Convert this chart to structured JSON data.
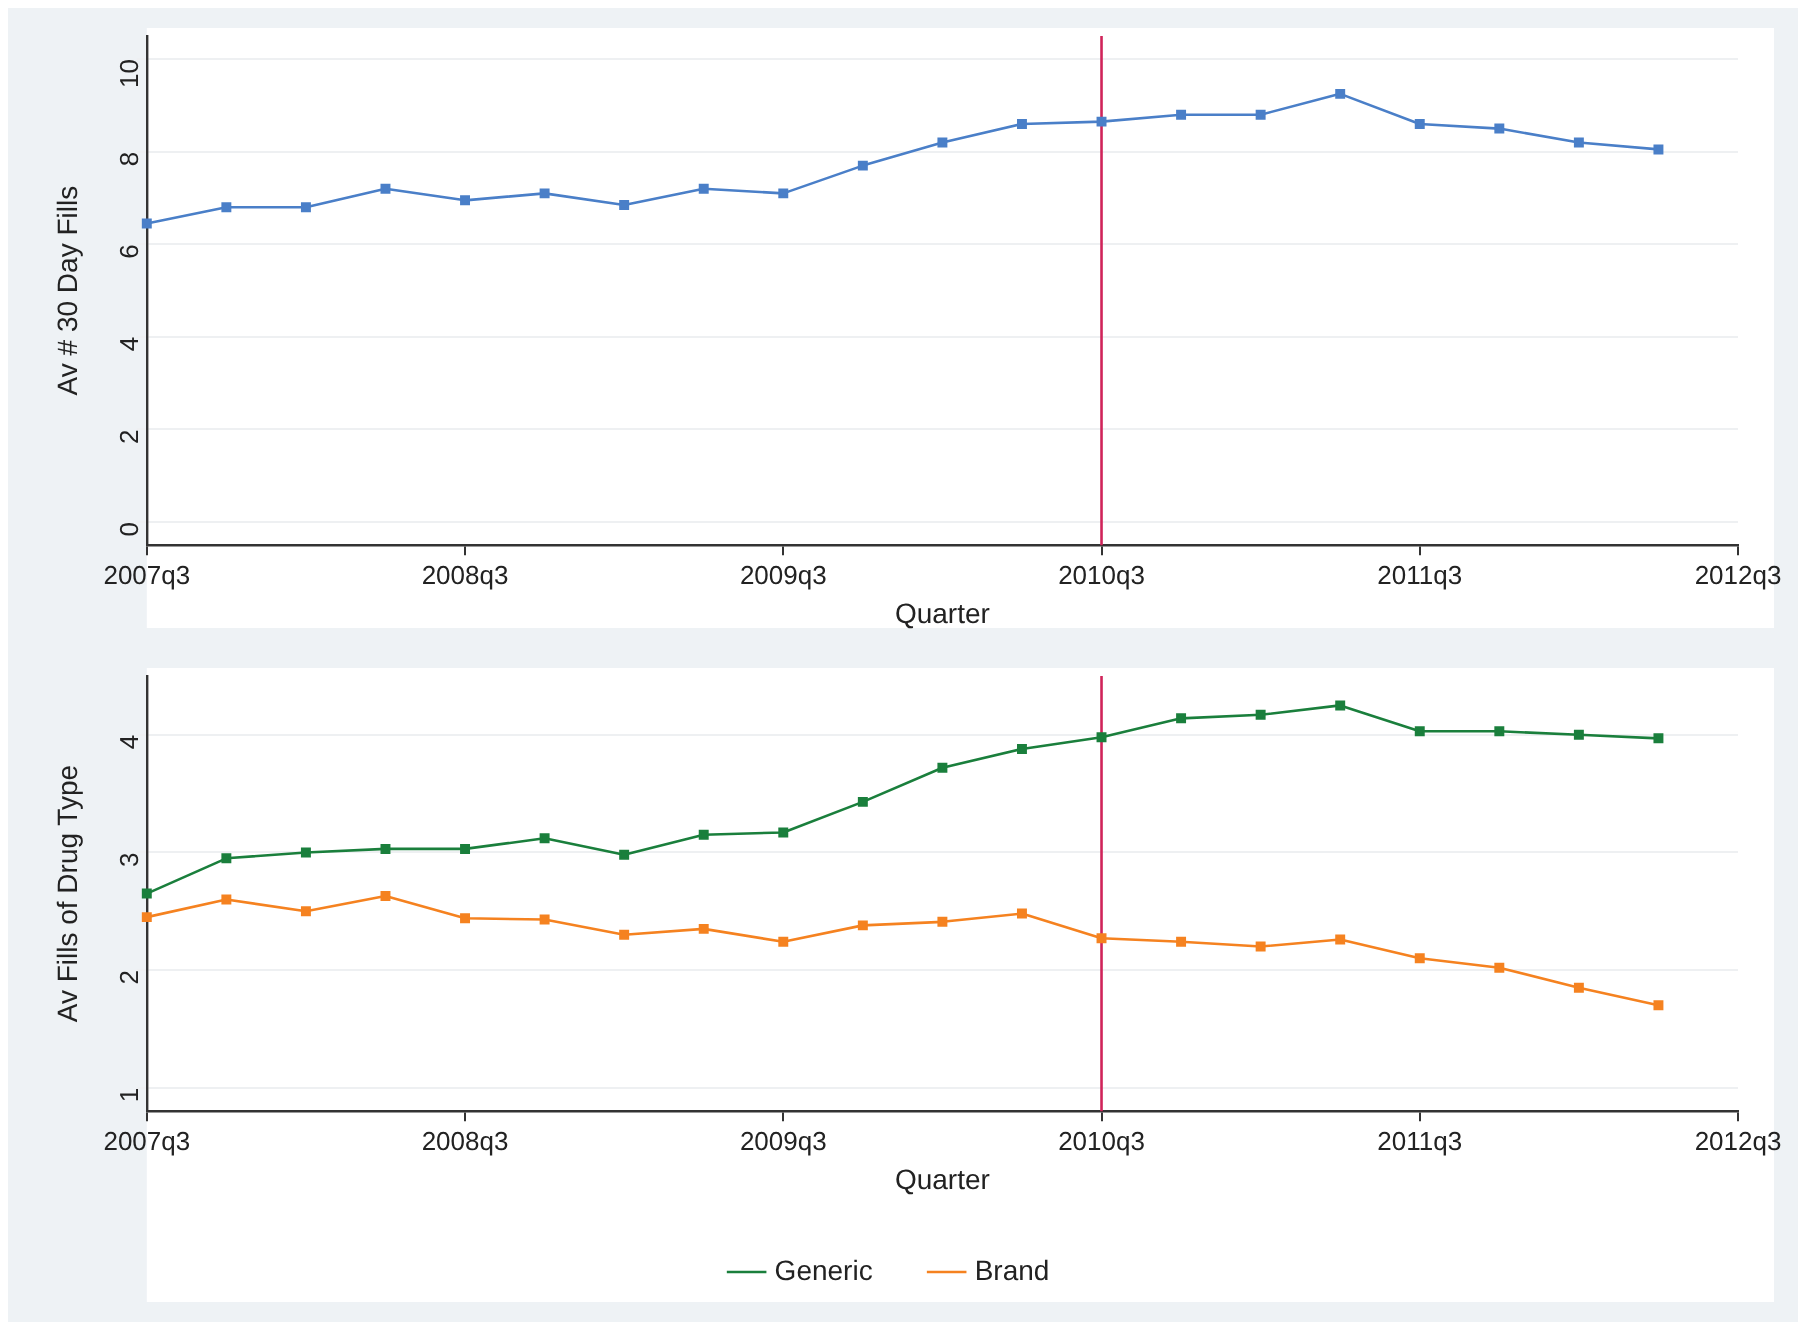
{
  "chart_data": [
    {
      "type": "line",
      "ylabel": "Av # 30 Day Fills",
      "xlabel": "Quarter",
      "marker": "square",
      "grid": "y",
      "legend": false,
      "categories": [
        "2007q3",
        null,
        null,
        null,
        "2008q3",
        null,
        null,
        null,
        "2009q3",
        null,
        null,
        null,
        "2010q3",
        null,
        null,
        null,
        "2011q3",
        null,
        null,
        null,
        "2012q3"
      ],
      "series": [
        {
          "color": "#4a7fc8",
          "values": [
            6.45,
            6.8,
            6.8,
            7.2,
            6.95,
            7.1,
            6.85,
            7.2,
            7.1,
            7.7,
            8.2,
            8.6,
            8.65,
            8.8,
            8.8,
            9.25,
            8.6,
            8.5,
            8.2,
            8.05,
            null
          ]
        }
      ],
      "ylim": [
        -0.5,
        10.5
      ],
      "yticks": [
        0,
        2,
        4,
        6,
        8,
        10
      ],
      "ref_lines": [
        {
          "axis": "x",
          "value": "2010q3",
          "color": "#d0245a"
        }
      ]
    },
    {
      "type": "line",
      "ylabel": "Av Fills of Drug Type",
      "xlabel": "Quarter",
      "marker": "square",
      "grid": "y",
      "legend": "bottom",
      "categories": [
        "2007q3",
        null,
        null,
        null,
        "2008q3",
        null,
        null,
        null,
        "2009q3",
        null,
        null,
        null,
        "2010q3",
        null,
        null,
        null,
        "2011q3",
        null,
        null,
        null,
        "2012q3"
      ],
      "series": [
        {
          "name": "Generic",
          "color": "#1a7f3c",
          "values": [
            2.65,
            2.95,
            3.0,
            3.03,
            3.03,
            3.12,
            2.98,
            3.15,
            3.17,
            3.43,
            3.72,
            3.88,
            3.98,
            4.14,
            4.17,
            4.25,
            4.03,
            4.03,
            4.0,
            3.97,
            null
          ]
        },
        {
          "name": "Brand",
          "color": "#f58220",
          "values": [
            2.45,
            2.6,
            2.5,
            2.63,
            2.44,
            2.43,
            2.3,
            2.35,
            2.24,
            2.38,
            2.41,
            2.48,
            2.27,
            2.24,
            2.2,
            2.26,
            2.1,
            2.02,
            1.85,
            1.7,
            null
          ]
        }
      ],
      "ylim": [
        0.8,
        4.5
      ],
      "yticks": [
        1,
        2,
        3,
        4
      ],
      "ref_lines": [
        {
          "axis": "x",
          "value": "2010q3",
          "color": "#d0245a"
        }
      ]
    }
  ]
}
